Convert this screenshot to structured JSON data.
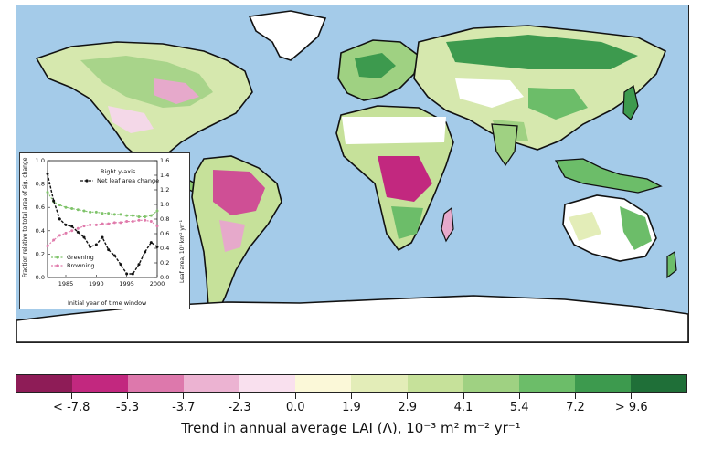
{
  "colorbar": {
    "colors": [
      "#8e1c57",
      "#c2287f",
      "#dd78ac",
      "#ecb3d2",
      "#f9e0ee",
      "#fbf8d8",
      "#e3edb8",
      "#c6e19a",
      "#9fd182",
      "#6cbd69",
      "#3d9a4e",
      "#1f6f38"
    ],
    "tick_labels": [
      "< -7.8",
      "-5.3",
      "-3.7",
      "-2.3",
      "0.0",
      "1.9",
      "2.9",
      "4.1",
      "5.4",
      "7.2",
      "> 9.6"
    ],
    "title": "Trend in annual average LAI (Λ), 10⁻³ m² m⁻² yr⁻¹"
  },
  "map": {
    "ocean_color": "#a4cbe9",
    "land_base_color": "#d8e9b0",
    "ice_color": "#ffffff",
    "desert_color": "#ffffff"
  },
  "chart_data": {
    "type": "line",
    "x": [
      1982,
      1983,
      1984,
      1985,
      1986,
      1987,
      1988,
      1989,
      1990,
      1991,
      1992,
      1993,
      1994,
      1995,
      1996,
      1997,
      1998,
      1999,
      2000
    ],
    "xlabel": "Initial year of time window",
    "ylabel": "Fraction relative to total area of sig. change",
    "y2label": "Leaf area, 10⁵ km² yr⁻¹",
    "xticks": [
      1985,
      1990,
      1995,
      2000
    ],
    "yticks": [
      "0.0",
      "0.2",
      "0.4",
      "0.6",
      "0.8",
      "1.0"
    ],
    "y2ticks": [
      "0.0",
      "0.2",
      "0.4",
      "0.6",
      "0.8",
      "1.0",
      "1.2",
      "1.4",
      "1.6"
    ],
    "xlim": [
      1982,
      2000
    ],
    "ylim": [
      0,
      1.0
    ],
    "y2lim": [
      0,
      1.6
    ],
    "right_axis_note": "Right y-axis",
    "series": [
      {
        "name": "Greening",
        "axis": "left",
        "color": "#7fc36a",
        "values": [
          0.73,
          0.65,
          0.62,
          0.6,
          0.59,
          0.58,
          0.57,
          0.56,
          0.56,
          0.55,
          0.55,
          0.54,
          0.54,
          0.53,
          0.53,
          0.52,
          0.52,
          0.53,
          0.57
        ]
      },
      {
        "name": "Browning",
        "axis": "left",
        "color": "#e07aab",
        "values": [
          0.27,
          0.32,
          0.36,
          0.38,
          0.4,
          0.42,
          0.44,
          0.45,
          0.45,
          0.46,
          0.46,
          0.47,
          0.47,
          0.48,
          0.48,
          0.49,
          0.49,
          0.48,
          0.44
        ]
      },
      {
        "name": "Net leaf area change",
        "axis": "right",
        "color": "#111111",
        "values": [
          1.42,
          1.05,
          0.8,
          0.72,
          0.7,
          0.62,
          0.55,
          0.42,
          0.45,
          0.55,
          0.38,
          0.3,
          0.18,
          0.05,
          0.05,
          0.18,
          0.35,
          0.48,
          0.42
        ]
      }
    ]
  }
}
